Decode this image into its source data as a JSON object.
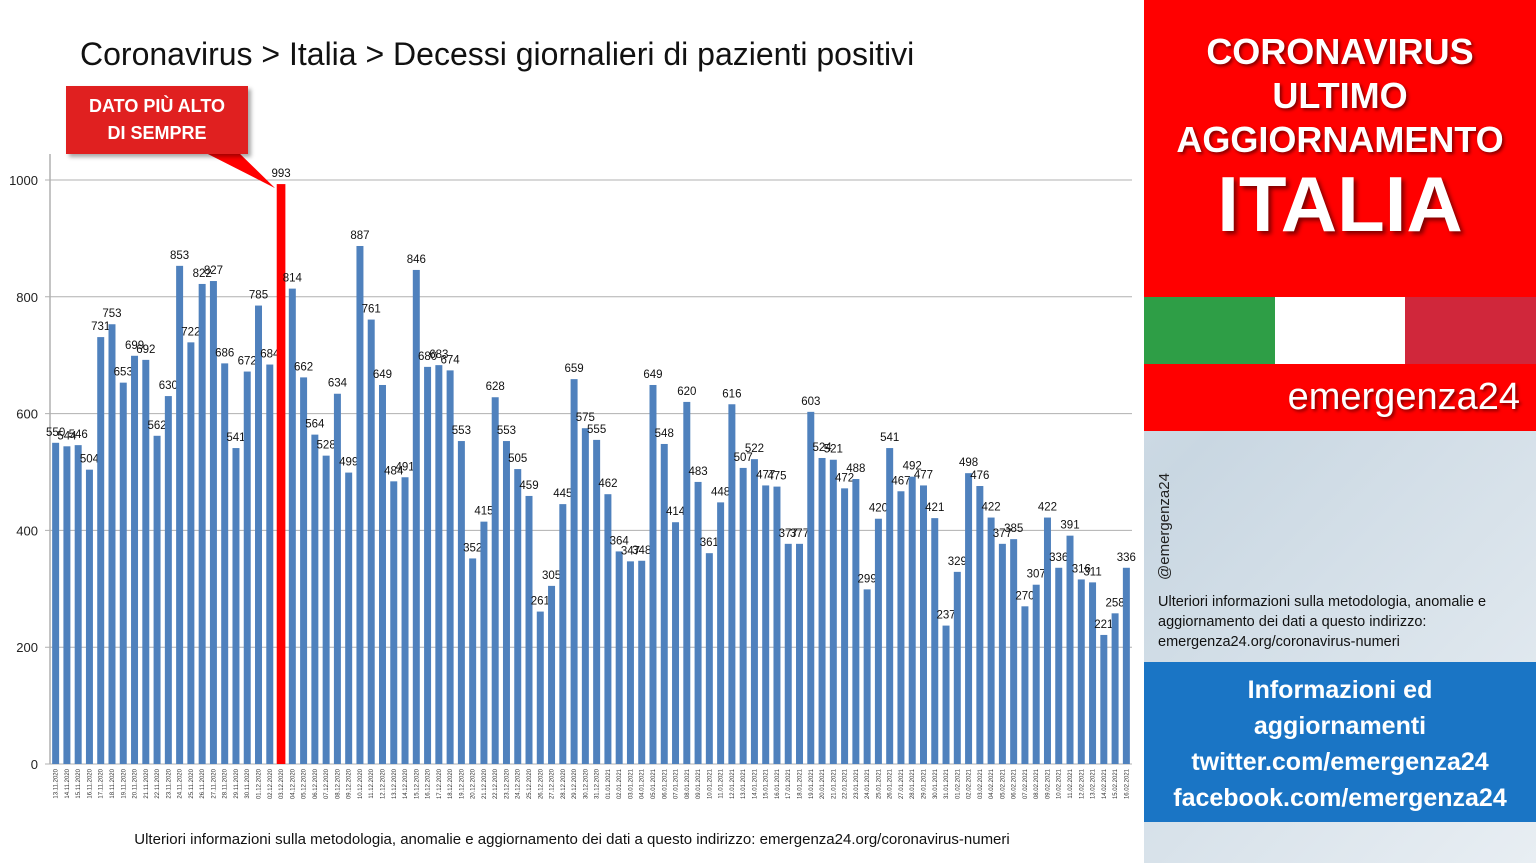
{
  "title": "Coronavirus > Italia > Decessi giornalieri di pazienti positivi",
  "callout": {
    "line1": "DATO PIÙ ALTO",
    "line2": "DI SEMPRE"
  },
  "footer_note": "Ulteriori informazioni sulla metodologia, anomalie e aggiornamento dei dati a questo indirizzo: emergenza24.org/coronavirus-numeri",
  "side": {
    "line1": "CORONAVIRUS",
    "line2": "ULTIMO",
    "line3": "AGGIORNAMENTO",
    "big": "ITALIA",
    "brand": "emergenza24",
    "handle": "@emergenza24",
    "info": "Ulteriori informazioni sulla metodologia, anomalie e aggiornamento dei dati a questo indirizzo: emergenza24.org/coronavirus-numeri",
    "blue_lines": [
      "Informazioni ed",
      "aggiornamenti",
      "twitter.com/emergenza24",
      "facebook.com/emergenza24"
    ]
  },
  "colors": {
    "bar": "#4f81bd",
    "highlight": "#ff0000",
    "flag_green": "#2e9e46",
    "flag_white": "#ffffff",
    "flag_red": "#d0273b",
    "grid": "#b0b0b0"
  },
  "chart_data": {
    "type": "bar",
    "title": "Coronavirus > Italia > Decessi giornalieri di pazienti positivi",
    "ylim": [
      0,
      1000
    ],
    "yticks": [
      0,
      200,
      400,
      600,
      800,
      1000
    ],
    "grid": true,
    "highlight_category": "03.12.2020",
    "categories": [
      "13.11.2020",
      "14.11.2020",
      "15.11.2020",
      "16.11.2020",
      "17.11.2020",
      "18.11.2020",
      "19.11.2020",
      "20.11.2020",
      "21.11.2020",
      "22.11.2020",
      "23.11.2020",
      "24.11.2020",
      "25.11.2020",
      "26.11.2020",
      "27.11.2020",
      "28.11.2020",
      "29.11.2020",
      "30.11.2020",
      "01.12.2020",
      "02.12.2020",
      "03.12.2020",
      "04.12.2020",
      "05.12.2020",
      "06.12.2020",
      "07.12.2020",
      "08.12.2020",
      "09.12.2020",
      "10.12.2020",
      "11.12.2020",
      "12.12.2020",
      "13.12.2020",
      "14.12.2020",
      "15.12.2020",
      "16.12.2020",
      "17.12.2020",
      "18.12.2020",
      "19.12.2020",
      "20.12.2020",
      "21.12.2020",
      "22.12.2020",
      "23.12.2020",
      "24.12.2020",
      "25.12.2020",
      "26.12.2020",
      "27.12.2020",
      "28.12.2020",
      "29.12.2020",
      "30.12.2020",
      "31.12.2020",
      "01.01.2021",
      "02.01.2021",
      "03.01.2021",
      "04.01.2021",
      "05.01.2021",
      "06.01.2021",
      "07.01.2021",
      "08.01.2021",
      "09.01.2021",
      "10.01.2021",
      "11.01.2021",
      "12.01.2021",
      "13.01.2021",
      "14.01.2021",
      "15.01.2021",
      "16.01.2021",
      "17.01.2021",
      "18.01.2021",
      "19.01.2021",
      "20.01.2021",
      "21.01.2021",
      "22.01.2021",
      "23.01.2021",
      "24.01.2021",
      "25.01.2021",
      "26.01.2021",
      "27.01.2021",
      "28.01.2021",
      "29.01.2021",
      "30.01.2021",
      "31.01.2021",
      "01.02.2021",
      "02.02.2021",
      "03.02.2021",
      "04.02.2021",
      "05.02.2021",
      "06.02.2021",
      "07.02.2021",
      "08.02.2021",
      "09.02.2021",
      "10.02.2021",
      "11.02.2021",
      "12.02.2021",
      "13.02.2021",
      "14.02.2021",
      "15.02.2021",
      "16.02.2021"
    ],
    "values": [
      550,
      544,
      546,
      504,
      731,
      753,
      653,
      699,
      692,
      562,
      630,
      853,
      722,
      822,
      827,
      686,
      541,
      672,
      785,
      684,
      993,
      814,
      662,
      564,
      528,
      634,
      499,
      887,
      761,
      649,
      484,
      491,
      846,
      680,
      683,
      674,
      553,
      352,
      415,
      628,
      553,
      505,
      459,
      261,
      305,
      445,
      659,
      575,
      555,
      462,
      364,
      347,
      348,
      649,
      548,
      414,
      620,
      483,
      361,
      448,
      616,
      507,
      522,
      477,
      475,
      377,
      377,
      603,
      524,
      521,
      472,
      488,
      299,
      420,
      541,
      467,
      492,
      477,
      421,
      237,
      329,
      498,
      476,
      422,
      377,
      385,
      270,
      307,
      422,
      336,
      391,
      316,
      311,
      221,
      258,
      336
    ]
  }
}
